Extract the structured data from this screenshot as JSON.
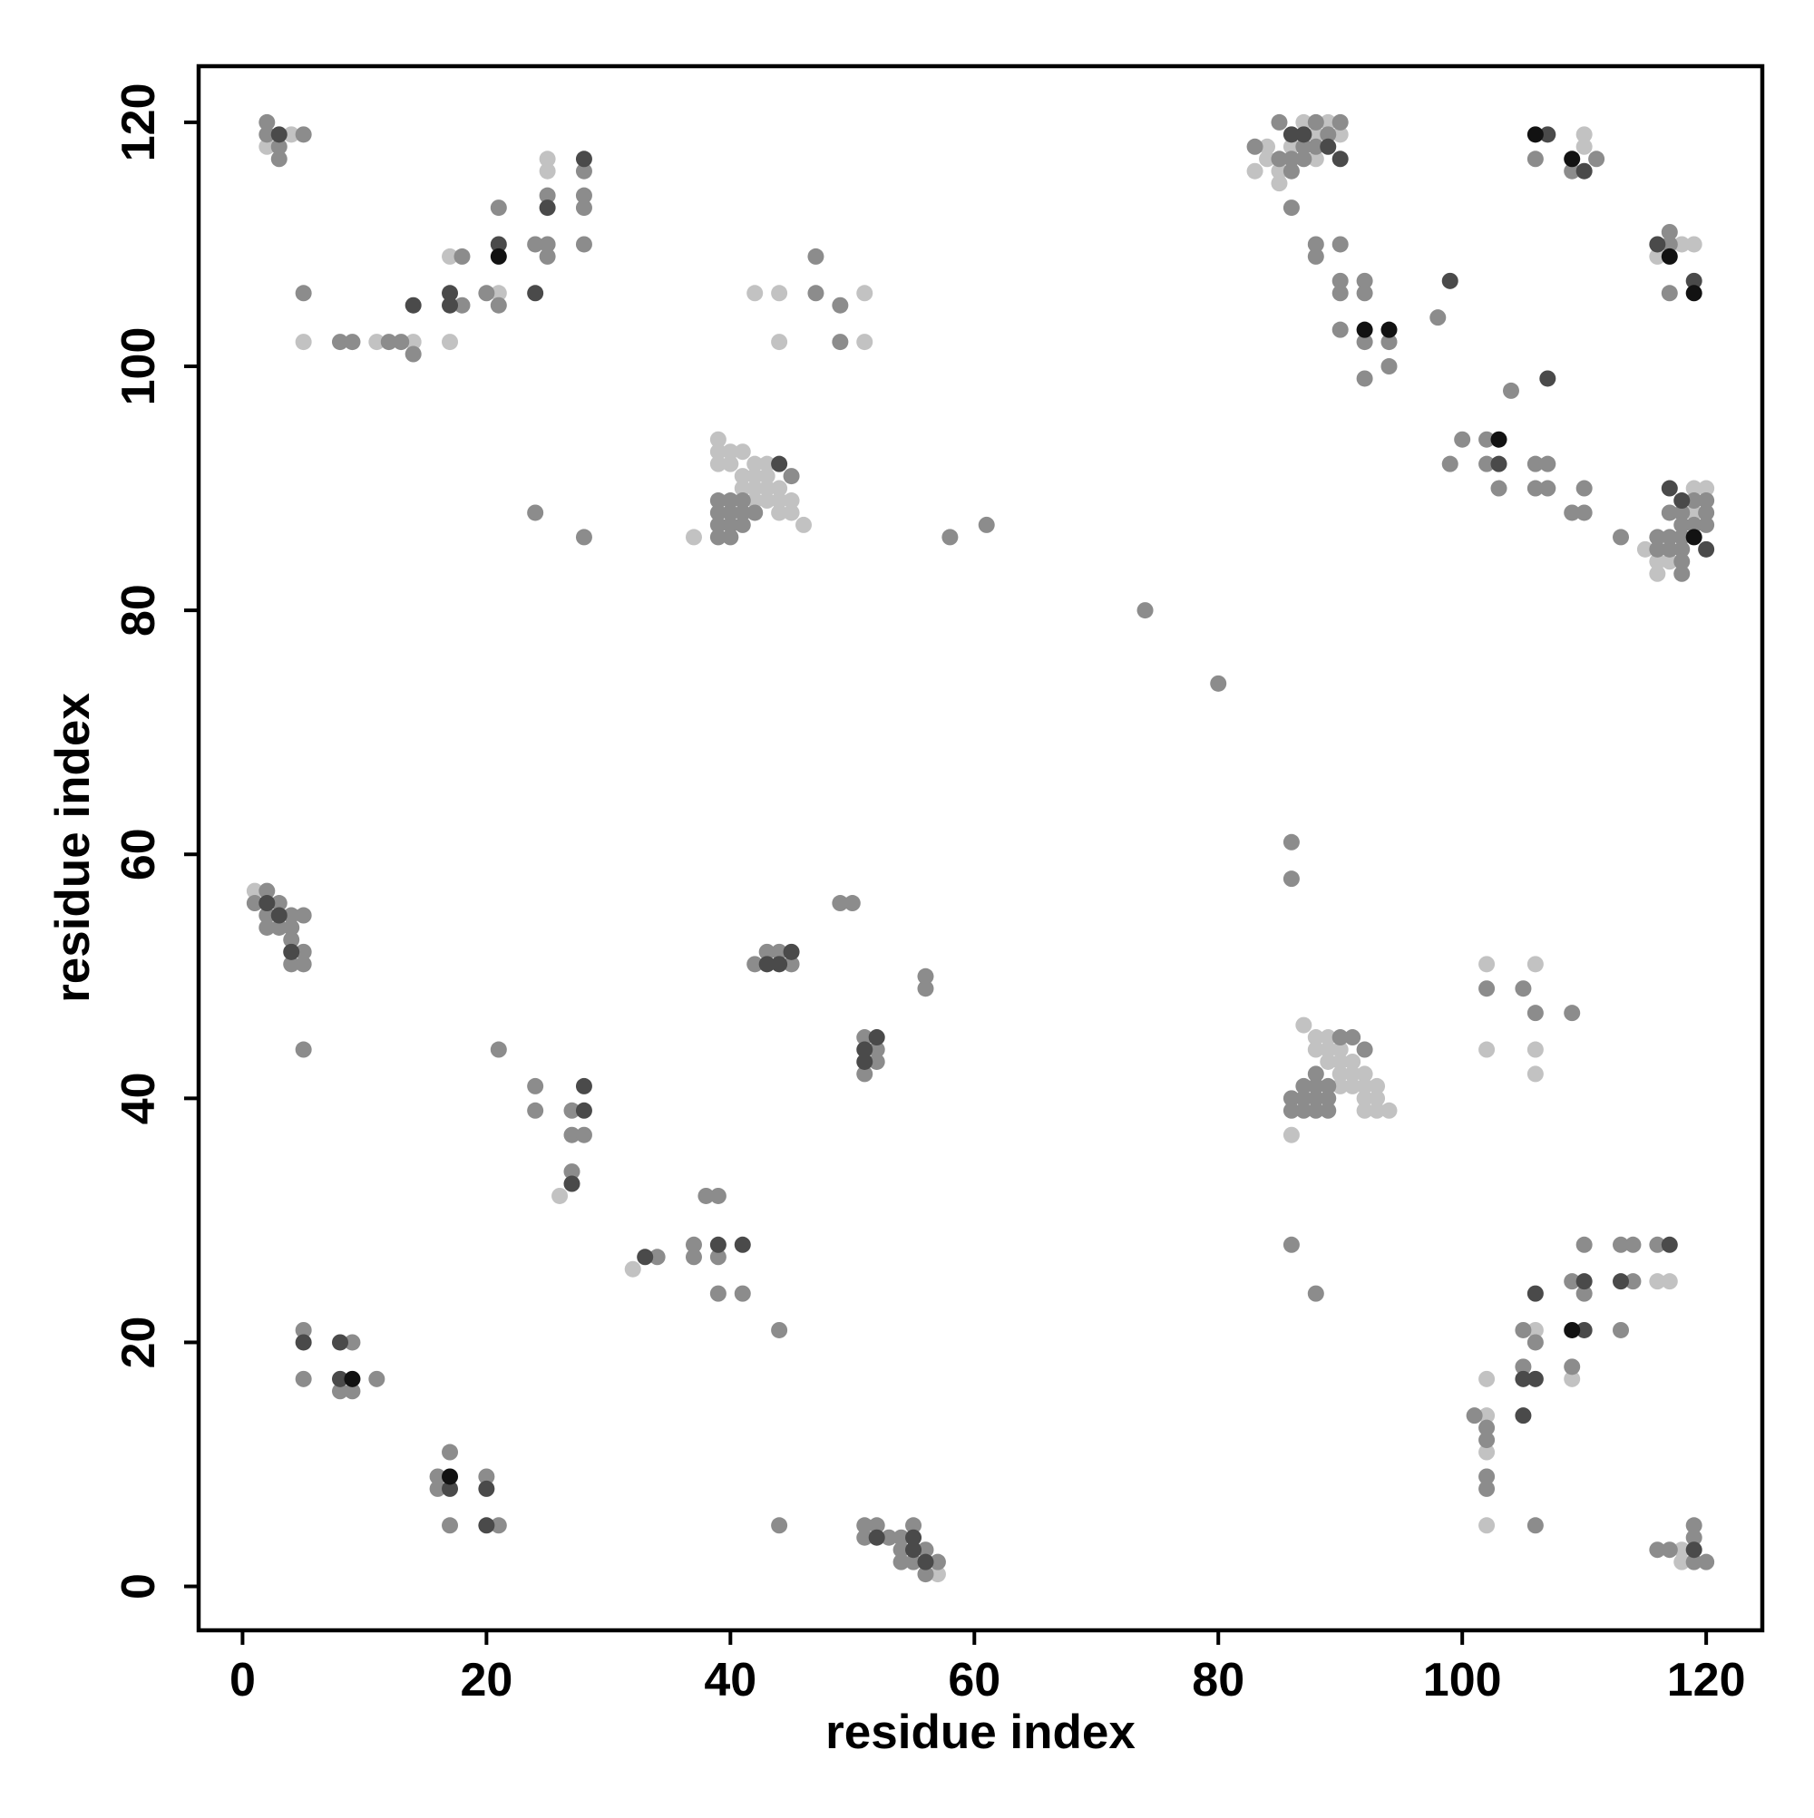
{
  "chart_data": {
    "type": "scatter",
    "xlabel": "residue index",
    "ylabel": "residue index",
    "xlim": [
      -3.6,
      124.6
    ],
    "ylim": [
      -3.6,
      124.6
    ],
    "xticks": [
      0,
      20,
      40,
      60,
      80,
      100,
      120
    ],
    "yticks": [
      0,
      20,
      40,
      60,
      80,
      100,
      120
    ],
    "grid": false,
    "series": [
      {
        "color": "#c2c2c2",
        "x": [
          2,
          4,
          5,
          11,
          14,
          17,
          17,
          21,
          25,
          25,
          42,
          44,
          44,
          51,
          51,
          39,
          39,
          40,
          41,
          39,
          40,
          42,
          43,
          41,
          42,
          43,
          41,
          42,
          43,
          44,
          42,
          43,
          44,
          45,
          44,
          45,
          46,
          37,
          83,
          84,
          84,
          85,
          85,
          86,
          87,
          88,
          88,
          89,
          90,
          110,
          110,
          116,
          118,
          119,
          115,
          116,
          116,
          117,
          119,
          119,
          120,
          1,
          26,
          32,
          57,
          87,
          88,
          89,
          88,
          89,
          90,
          90,
          91,
          89,
          90,
          91,
          92,
          91,
          92,
          93,
          92,
          93,
          92,
          93,
          94,
          86,
          90,
          102,
          102,
          106,
          106,
          106,
          102,
          102,
          102,
          102,
          106,
          109,
          116,
          117,
          118,
          118
        ],
        "values": [
          118,
          119,
          102,
          102,
          102,
          109,
          102,
          106,
          116,
          117,
          106,
          106,
          102,
          106,
          102,
          94,
          93,
          93,
          93,
          92,
          92,
          92,
          92,
          91,
          91,
          91,
          90,
          90,
          90,
          90,
          89,
          89,
          89,
          89,
          88,
          88,
          87,
          86,
          116,
          118,
          117,
          116,
          115,
          118,
          120,
          119,
          117,
          120,
          119,
          119,
          118,
          109,
          110,
          110,
          85,
          84,
          83,
          84,
          90,
          88,
          90,
          57,
          32,
          26,
          1,
          46,
          45,
          45,
          44,
          44,
          44,
          43,
          43,
          43,
          42,
          42,
          42,
          41,
          41,
          41,
          40,
          40,
          39,
          39,
          39,
          37,
          41,
          51,
          44,
          51,
          44,
          42,
          17,
          14,
          11,
          5,
          21,
          17,
          25,
          25,
          3,
          2
        ]
      },
      {
        "color": "#8c8c8c",
        "x": [
          2,
          2,
          3,
          3,
          5,
          5,
          8,
          9,
          12,
          13,
          14,
          18,
          18,
          20,
          21,
          21,
          24,
          25,
          25,
          25,
          28,
          28,
          28,
          28,
          47,
          47,
          49,
          49,
          24,
          28,
          39,
          40,
          41,
          39,
          40,
          41,
          39,
          40,
          41,
          39,
          40,
          45,
          42,
          58,
          61,
          74,
          80,
          83,
          85,
          85,
          86,
          86,
          87,
          87,
          88,
          88,
          89,
          90,
          86,
          88,
          88,
          90,
          90,
          90,
          92,
          92,
          90,
          92,
          94,
          94,
          92,
          98,
          106,
          109,
          111,
          117,
          117,
          117,
          104,
          99,
          100,
          102,
          102,
          103,
          106,
          107,
          106,
          107,
          109,
          110,
          110,
          113,
          116,
          116,
          117,
          117,
          117,
          118,
          118,
          118,
          118,
          118,
          118,
          119,
          119,
          120,
          120,
          120,
          1,
          2,
          2,
          2,
          3,
          3,
          4,
          4,
          4,
          4,
          5,
          5,
          5,
          5,
          21,
          42,
          43,
          44,
          45,
          49,
          50,
          56,
          56,
          51,
          52,
          52,
          51,
          24,
          24,
          27,
          27,
          28,
          27,
          34,
          37,
          37,
          38,
          39,
          39,
          39,
          41,
          44,
          5,
          5,
          9,
          8,
          9,
          11,
          16,
          16,
          17,
          17,
          20,
          21,
          44,
          51,
          52,
          51,
          53,
          54,
          54,
          55,
          54,
          55,
          56,
          56,
          57,
          86,
          86,
          86,
          88,
          86,
          86,
          87,
          87,
          87,
          88,
          88,
          88,
          88,
          89,
          89,
          89,
          91,
          92,
          90,
          102,
          105,
          106,
          109,
          101,
          102,
          102,
          102,
          102,
          106,
          105,
          106,
          105,
          109,
          110,
          109,
          110,
          113,
          114,
          114,
          113,
          116,
          116,
          117,
          119,
          119,
          119,
          120
        ],
        "values": [
          120,
          119,
          118,
          117,
          119,
          106,
          102,
          102,
          102,
          102,
          101,
          109,
          105,
          106,
          105,
          113,
          110,
          110,
          109,
          114,
          116,
          114,
          113,
          110,
          109,
          106,
          105,
          102,
          88,
          86,
          89,
          89,
          89,
          88,
          88,
          88,
          87,
          87,
          87,
          86,
          86,
          91,
          88,
          86,
          87,
          80,
          74,
          118,
          117,
          120,
          117,
          116,
          118,
          117,
          120,
          118,
          119,
          120,
          113,
          110,
          109,
          110,
          107,
          106,
          107,
          106,
          103,
          102,
          102,
          100,
          99,
          104,
          117,
          116,
          117,
          111,
          110,
          106,
          98,
          92,
          94,
          94,
          92,
          90,
          92,
          92,
          90,
          90,
          88,
          88,
          90,
          86,
          86,
          85,
          88,
          86,
          85,
          88,
          87,
          86,
          85,
          84,
          83,
          89,
          87,
          89,
          88,
          87,
          56,
          57,
          55,
          54,
          56,
          54,
          55,
          54,
          53,
          51,
          55,
          52,
          51,
          44,
          44,
          51,
          52,
          52,
          51,
          56,
          56,
          50,
          49,
          45,
          44,
          43,
          42,
          41,
          39,
          39,
          37,
          37,
          34,
          27,
          28,
          27,
          32,
          32,
          27,
          24,
          24,
          21,
          21,
          17,
          20,
          16,
          16,
          17,
          9,
          8,
          11,
          5,
          9,
          5,
          5,
          5,
          5,
          4,
          4,
          4,
          3,
          5,
          2,
          2,
          3,
          1,
          2,
          61,
          58,
          28,
          24,
          40,
          39,
          41,
          40,
          39,
          42,
          41,
          40,
          39,
          41,
          40,
          39,
          45,
          44,
          45,
          49,
          49,
          47,
          47,
          14,
          13,
          12,
          9,
          8,
          5,
          21,
          20,
          18,
          25,
          24,
          18,
          28,
          28,
          28,
          25,
          21,
          28,
          3,
          3,
          5,
          4,
          2,
          2
        ]
      },
      {
        "color": "#4a4a4a",
        "x": [
          3,
          14,
          17,
          17,
          21,
          24,
          25,
          28,
          44,
          86,
          87,
          89,
          90,
          99,
          107,
          110,
          116,
          119,
          103,
          107,
          117,
          118,
          120,
          2,
          3,
          4,
          43,
          44,
          45,
          51,
          51,
          52,
          27,
          28,
          28,
          33,
          39,
          41,
          5,
          8,
          8,
          17,
          20,
          20,
          52,
          55,
          55,
          56,
          105,
          106,
          105,
          106,
          110,
          110,
          113,
          117,
          119
        ],
        "values": [
          119,
          105,
          106,
          105,
          110,
          106,
          113,
          117,
          92,
          119,
          119,
          118,
          117,
          107,
          119,
          116,
          110,
          107,
          92,
          99,
          90,
          89,
          85,
          56,
          55,
          52,
          51,
          51,
          52,
          44,
          43,
          45,
          33,
          41,
          39,
          27,
          28,
          28,
          20,
          20,
          17,
          8,
          8,
          5,
          4,
          4,
          3,
          2,
          17,
          17,
          14,
          24,
          25,
          21,
          25,
          28,
          3
        ]
      },
      {
        "color": "#121212",
        "x": [
          21,
          92,
          94,
          106,
          109,
          117,
          119,
          103,
          119,
          9,
          17,
          109
        ],
        "values": [
          109,
          103,
          103,
          119,
          117,
          109,
          106,
          94,
          86,
          17,
          9,
          21
        ]
      }
    ]
  }
}
